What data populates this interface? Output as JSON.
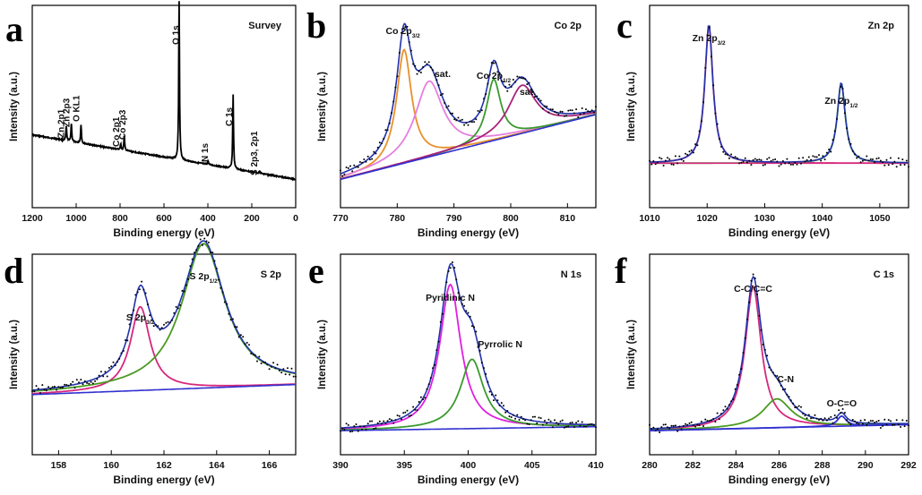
{
  "figure": {
    "axis_label_x": "Binding energy (eV)",
    "axis_label_y": "Intensity (a.u.)"
  },
  "chart_data": [
    {
      "panel": "a",
      "type": "line",
      "title": "Survey",
      "xlabel": "Binding energy (eV)",
      "ylabel": "Intensity (a.u.)",
      "xlim": [
        1200,
        0
      ],
      "x_reversed": true,
      "xticks": [
        "1200",
        "1000",
        "800",
        "600",
        "400",
        "200",
        "0"
      ],
      "grid": false,
      "annotations": [
        "Zn 2p1",
        "Zn 2p3",
        "O KL1",
        "Co 2p1",
        "Co 2p3",
        "O 1s",
        "N 1s",
        "C 1s",
        "S 2p3, 2p1"
      ],
      "peaks": [
        {
          "label": "Zn 2p1",
          "x": 1045
        },
        {
          "label": "Zn 2p3",
          "x": 1022
        },
        {
          "label": "O KL1",
          "x": 978
        },
        {
          "label": "Co 2p1",
          "x": 797
        },
        {
          "label": "Co 2p3",
          "x": 781
        },
        {
          "label": "O 1s",
          "x": 531
        },
        {
          "label": "N 1s",
          "x": 399
        },
        {
          "label": "C 1s",
          "x": 285
        },
        {
          "label": "S 2p3, 2p1",
          "x": 164
        }
      ]
    },
    {
      "panel": "b",
      "type": "line",
      "title": "Co 2p",
      "xlabel": "Binding energy (eV)",
      "ylabel": "Intensity (a.u.)",
      "xlim": [
        770,
        815
      ],
      "xticks": [
        "770",
        "780",
        "790",
        "800",
        "810"
      ],
      "grid": false,
      "annotations": [
        {
          "main": "Co 2p",
          "sub": "3/2"
        },
        {
          "main": "sat.",
          "sub": ""
        },
        {
          "main": "Co 2p",
          "sub": "1/2"
        },
        {
          "main": "sat.",
          "sub": ""
        }
      ],
      "series": [
        {
          "color": "#e8912a",
          "type": "peak",
          "center": 781.2,
          "amplitude": 0.78,
          "width": 1.6
        },
        {
          "color": "#e57ee0",
          "type": "peak",
          "center": 785.6,
          "amplitude": 0.52,
          "width": 3.0
        },
        {
          "color": "#3a9a2e",
          "type": "peak",
          "center": 797.0,
          "amplitude": 0.42,
          "width": 1.5
        },
        {
          "color": "#a8227a",
          "type": "peak",
          "center": 802.0,
          "amplitude": 0.33,
          "width": 3.0
        }
      ]
    },
    {
      "panel": "c",
      "type": "line",
      "title": "Zn 2p",
      "xlabel": "Binding energy (eV)",
      "ylabel": "Intensity (a.u.)",
      "xlim": [
        1010,
        1055
      ],
      "xticks": [
        "1010",
        "1020",
        "1030",
        "1040",
        "1050"
      ],
      "grid": false,
      "annotations": [
        {
          "main": "Zn 2p",
          "sub": "3/2"
        },
        {
          "main": "Zn 2p",
          "sub": "1/2"
        }
      ],
      "series": [
        {
          "color": "#d6287d",
          "type": "peak",
          "center": 1020.3,
          "amplitude": 0.95,
          "width": 0.85
        },
        {
          "color": "#3a9a2e",
          "type": "peak",
          "center": 1043.3,
          "amplitude": 0.55,
          "width": 0.85
        }
      ]
    },
    {
      "panel": "d",
      "type": "line",
      "title": "S 2p",
      "xlabel": "Binding energy (eV)",
      "ylabel": "Intensity (a.u.)",
      "xlim": [
        157,
        167
      ],
      "xticks": [
        "158",
        "160",
        "162",
        "164",
        "166"
      ],
      "grid": false,
      "annotations": [
        {
          "main": "S 2p",
          "sub": "3/2"
        },
        {
          "main": "S 2p",
          "sub": "1/2"
        }
      ],
      "series": [
        {
          "color": "#d6287d",
          "type": "peak",
          "center": 161.1,
          "amplitude": 0.58,
          "width": 0.45
        },
        {
          "color": "#4a9a20",
          "type": "peak",
          "center": 163.5,
          "amplitude": 1.0,
          "width": 1.0
        }
      ]
    },
    {
      "panel": "e",
      "type": "line",
      "title": "N 1s",
      "xlabel": "Binding energy (eV)",
      "ylabel": "Intensity (a.u.)",
      "xlim": [
        390,
        410
      ],
      "xticks": [
        "390",
        "395",
        "400",
        "405",
        "410"
      ],
      "grid": false,
      "annotations": [
        "Pyridinic N",
        "Pyrrolic N"
      ],
      "series": [
        {
          "color": "#e020e0",
          "type": "peak",
          "center": 398.6,
          "amplitude": 1.0,
          "width": 1.0
        },
        {
          "color": "#3a9a2e",
          "type": "peak",
          "center": 400.3,
          "amplitude": 0.48,
          "width": 1.1
        }
      ]
    },
    {
      "panel": "f",
      "type": "line",
      "title": "C 1s",
      "xlabel": "Binding energy (eV)",
      "ylabel": "Intensity (a.u.)",
      "xlim": [
        280,
        292
      ],
      "xticks": [
        "280",
        "282",
        "284",
        "286",
        "288",
        "290",
        "292"
      ],
      "grid": false,
      "annotations": [
        "C-C/C=C",
        "C-N",
        "O-C=O"
      ],
      "series": [
        {
          "color": "#d6287d",
          "type": "peak",
          "center": 284.8,
          "amplitude": 0.98,
          "width": 0.45
        },
        {
          "color": "#4a9a20",
          "type": "peak",
          "center": 285.9,
          "amplitude": 0.2,
          "width": 0.8
        },
        {
          "color": "#3030d0",
          "type": "peak",
          "center": 288.9,
          "amplitude": 0.07,
          "width": 0.25
        }
      ]
    }
  ]
}
